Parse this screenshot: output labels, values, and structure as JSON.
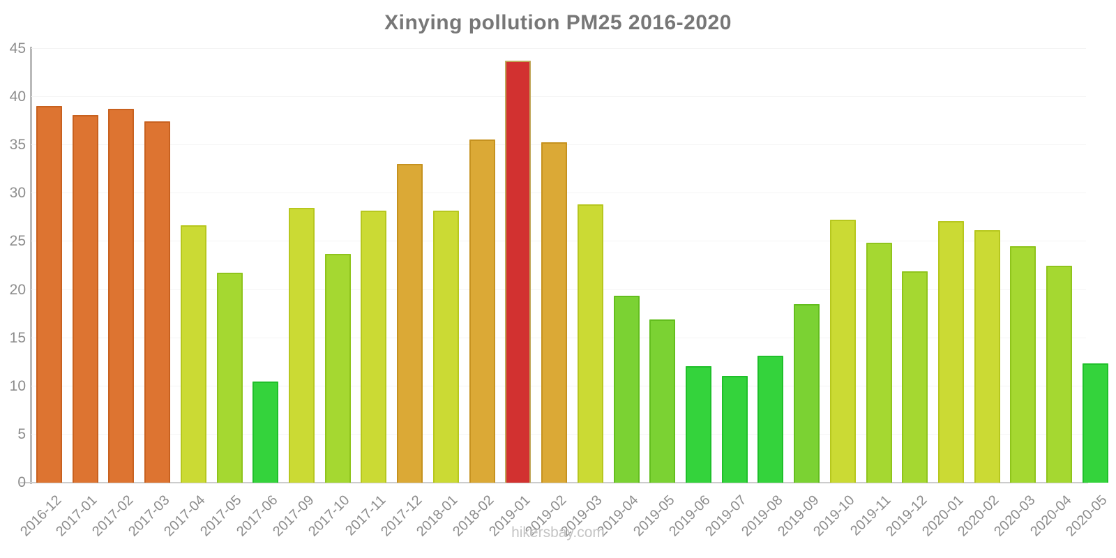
{
  "title": "Xinying pollution PM25 2016-2020",
  "footer": "hikersbay.com",
  "palette": {
    "orange": {
      "fill": "#DD7431",
      "border": "#C8611F"
    },
    "amber": {
      "fill": "#DBA936",
      "border": "#C6921F"
    },
    "red": {
      "fill": "#D23130",
      "border": "#C0A85A"
    },
    "yellowGreen": {
      "fill": "#CBDA34",
      "border": "#B7C71E"
    },
    "lightGreen": {
      "fill": "#A5D831",
      "border": "#8FC41C"
    },
    "green": {
      "fill": "#7BD233",
      "border": "#63BE1D"
    },
    "brightGreen": {
      "fill": "#34D33C",
      "border": "#1FC02A"
    }
  },
  "chart_data": {
    "type": "bar",
    "title": "Xinying pollution PM25 2016-2020",
    "xlabel": "",
    "ylabel": "",
    "ylim": [
      0,
      45
    ],
    "yticks": [
      0,
      5,
      10,
      15,
      20,
      25,
      30,
      35,
      40,
      45
    ],
    "grid": true,
    "legend": "none",
    "categories": [
      "2016-12",
      "2017-01",
      "2017-02",
      "2017-03",
      "2017-04",
      "2017-05",
      "2017-06",
      "2017-09",
      "2017-10",
      "2017-11",
      "2017-12",
      "2018-01",
      "2018-02",
      "2019-01",
      "2019-02",
      "2019-03",
      "2019-04",
      "2019-05",
      "2019-06",
      "2019-07",
      "2019-08",
      "2019-09",
      "2019-10",
      "2019-11",
      "2019-12",
      "2020-01",
      "2020-02",
      "2020-03",
      "2020-04",
      "2020-05"
    ],
    "values": [
      39.1,
      38.1,
      38.8,
      37.5,
      26.7,
      21.8,
      10.5,
      28.5,
      23.7,
      28.2,
      33.1,
      28.2,
      35.6,
      43.8,
      35.3,
      28.9,
      19.4,
      16.9,
      12.1,
      11.1,
      13.2,
      18.5,
      27.3,
      24.9,
      21.9,
      27.1,
      26.2,
      24.5,
      22.5,
      12.4
    ],
    "bar_colors": [
      "orange",
      "orange",
      "orange",
      "orange",
      "yellowGreen",
      "lightGreen",
      "brightGreen",
      "yellowGreen",
      "lightGreen",
      "yellowGreen",
      "amber",
      "yellowGreen",
      "amber",
      "red",
      "amber",
      "yellowGreen",
      "green",
      "green",
      "brightGreen",
      "brightGreen",
      "brightGreen",
      "green",
      "yellowGreen",
      "lightGreen",
      "lightGreen",
      "yellowGreen",
      "yellowGreen",
      "lightGreen",
      "lightGreen",
      "brightGreen"
    ]
  }
}
